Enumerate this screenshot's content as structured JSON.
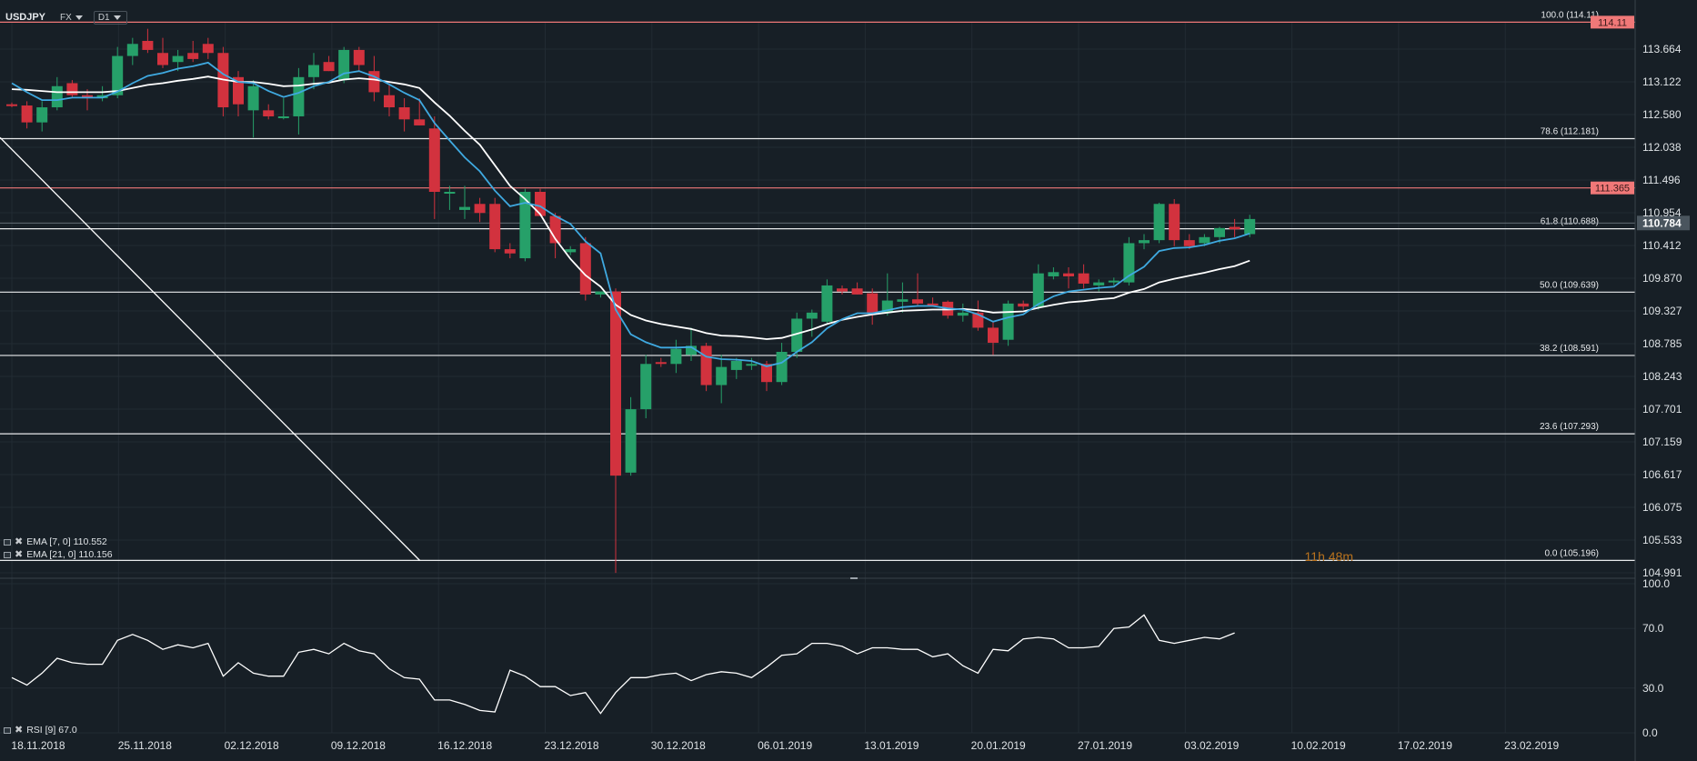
{
  "header": {
    "symbol": "USDJPY",
    "market": "FX",
    "timeframe": "D1"
  },
  "indicators": {
    "ema7": "EMA [7, 0] 110.552",
    "ema21": "EMA [21, 0] 110.156",
    "rsi": "RSI [9] 67.0"
  },
  "timer": "11h 48m",
  "colors": {
    "background": "#171f26",
    "bull": "#26a069",
    "bear": "#d2323e",
    "ema7": "#3fa9e0",
    "ema21": "#ffffff",
    "resistance": "#f07878",
    "grid": "#222b33"
  },
  "chart_data": [
    {
      "type": "candlestick",
      "title": "USDJPY",
      "y_ticks": [
        "113.664",
        "113.122",
        "112.580",
        "112.038",
        "111.496",
        "110.954",
        "110.412",
        "109.870",
        "109.327",
        "108.785",
        "108.243",
        "107.701",
        "107.159",
        "106.617",
        "106.075",
        "105.533",
        "104.991"
      ],
      "x_ticks": [
        "18.11.2018",
        "25.11.2018",
        "02.12.2018",
        "09.12.2018",
        "16.12.2018",
        "23.12.2018",
        "30.12.2018",
        "06.01.2019",
        "13.01.2019",
        "20.01.2019",
        "27.01.2019",
        "03.02.2019",
        "10.02.2019",
        "17.02.2019",
        "23.02.2019"
      ],
      "ylim": [
        104.8,
        114.3
      ],
      "price_labels": {
        "top": "114.11",
        "resistance": "111.365",
        "last": "110.784"
      },
      "horizontal_levels": [
        {
          "value": 114.11,
          "label": "100.0 (114.11)",
          "kind": "fib-resistance"
        },
        {
          "value": 112.181,
          "label": "78.6 (112.181)",
          "kind": "fib"
        },
        {
          "value": 111.365,
          "label": "",
          "kind": "resistance"
        },
        {
          "value": 110.688,
          "label": "61.8 (110.688)",
          "kind": "fib"
        },
        {
          "value": 109.639,
          "label": "50.0 (109.639)",
          "kind": "fib"
        },
        {
          "value": 108.591,
          "label": "38.2 (108.591)",
          "kind": "fib"
        },
        {
          "value": 107.293,
          "label": "23.6 (107.293)",
          "kind": "fib"
        },
        {
          "value": 105.196,
          "label": "0.0 (105.196)",
          "kind": "fib"
        }
      ],
      "trendline": {
        "from": {
          "bar": 0,
          "value": 112.2
        },
        "to": {
          "bar": 27.5,
          "value": 105.196
        }
      },
      "candles": [
        {
          "o": 112.75,
          "h": 112.78,
          "l": 112.7,
          "c": 112.73
        },
        {
          "o": 112.73,
          "h": 112.8,
          "l": 112.35,
          "c": 112.45
        },
        {
          "o": 112.45,
          "h": 112.8,
          "l": 112.3,
          "c": 112.7
        },
        {
          "o": 112.7,
          "h": 113.2,
          "l": 112.65,
          "c": 113.05
        },
        {
          "o": 113.1,
          "h": 113.15,
          "l": 112.85,
          "c": 112.9
        },
        {
          "o": 112.9,
          "h": 113.0,
          "l": 112.65,
          "c": 112.85
        },
        {
          "o": 112.85,
          "h": 113.05,
          "l": 112.8,
          "c": 112.9
        },
        {
          "o": 112.9,
          "h": 113.7,
          "l": 112.85,
          "c": 113.55
        },
        {
          "o": 113.55,
          "h": 113.85,
          "l": 113.4,
          "c": 113.75
        },
        {
          "o": 113.8,
          "h": 114.0,
          "l": 113.6,
          "c": 113.65
        },
        {
          "o": 113.6,
          "h": 113.85,
          "l": 113.35,
          "c": 113.4
        },
        {
          "o": 113.45,
          "h": 113.65,
          "l": 113.3,
          "c": 113.55
        },
        {
          "o": 113.6,
          "h": 113.8,
          "l": 113.45,
          "c": 113.5
        },
        {
          "o": 113.75,
          "h": 113.85,
          "l": 113.5,
          "c": 113.6
        },
        {
          "o": 113.6,
          "h": 113.7,
          "l": 112.55,
          "c": 112.7
        },
        {
          "o": 113.2,
          "h": 113.3,
          "l": 112.55,
          "c": 112.75
        },
        {
          "o": 112.65,
          "h": 113.15,
          "l": 112.2,
          "c": 113.05
        },
        {
          "o": 112.65,
          "h": 112.75,
          "l": 112.5,
          "c": 112.55
        },
        {
          "o": 112.55,
          "h": 112.85,
          "l": 112.5,
          "c": 112.55
        },
        {
          "o": 112.55,
          "h": 113.35,
          "l": 112.25,
          "c": 113.2
        },
        {
          "o": 113.2,
          "h": 113.6,
          "l": 113.0,
          "c": 113.4
        },
        {
          "o": 113.45,
          "h": 113.55,
          "l": 113.3,
          "c": 113.3
        },
        {
          "o": 113.15,
          "h": 113.7,
          "l": 113.1,
          "c": 113.65
        },
        {
          "o": 113.65,
          "h": 113.7,
          "l": 113.3,
          "c": 113.4
        },
        {
          "o": 113.3,
          "h": 113.55,
          "l": 112.8,
          "c": 112.95
        },
        {
          "o": 112.9,
          "h": 113.1,
          "l": 112.55,
          "c": 112.7
        },
        {
          "o": 112.7,
          "h": 112.85,
          "l": 112.3,
          "c": 112.5
        },
        {
          "o": 112.5,
          "h": 112.85,
          "l": 112.4,
          "c": 112.4
        },
        {
          "o": 112.35,
          "h": 112.55,
          "l": 110.85,
          "c": 111.3
        },
        {
          "o": 111.3,
          "h": 111.4,
          "l": 111.0,
          "c": 111.3
        },
        {
          "o": 111.0,
          "h": 111.4,
          "l": 110.85,
          "c": 111.05
        },
        {
          "o": 111.1,
          "h": 111.2,
          "l": 110.8,
          "c": 110.95
        },
        {
          "o": 111.1,
          "h": 111.2,
          "l": 110.3,
          "c": 110.35
        },
        {
          "o": 110.35,
          "h": 110.45,
          "l": 110.2,
          "c": 110.28
        },
        {
          "o": 110.2,
          "h": 111.35,
          "l": 110.15,
          "c": 111.3
        },
        {
          "o": 111.3,
          "h": 111.35,
          "l": 110.9,
          "c": 110.9
        },
        {
          "o": 110.9,
          "h": 110.95,
          "l": 110.2,
          "c": 110.45
        },
        {
          "o": 110.3,
          "h": 110.4,
          "l": 110.25,
          "c": 110.35
        },
        {
          "o": 110.45,
          "h": 110.55,
          "l": 109.5,
          "c": 109.6
        },
        {
          "o": 109.6,
          "h": 109.65,
          "l": 109.55,
          "c": 109.65
        },
        {
          "o": 109.65,
          "h": 109.7,
          "l": 104.99,
          "c": 106.6
        },
        {
          "o": 106.65,
          "h": 107.9,
          "l": 106.6,
          "c": 107.7
        },
        {
          "o": 107.7,
          "h": 108.6,
          "l": 107.55,
          "c": 108.45
        },
        {
          "o": 108.48,
          "h": 108.55,
          "l": 108.4,
          "c": 108.45
        },
        {
          "o": 108.45,
          "h": 108.85,
          "l": 108.3,
          "c": 108.7
        },
        {
          "o": 108.6,
          "h": 109.05,
          "l": 108.5,
          "c": 108.75
        },
        {
          "o": 108.75,
          "h": 108.8,
          "l": 108.0,
          "c": 108.1
        },
        {
          "o": 108.1,
          "h": 108.6,
          "l": 107.8,
          "c": 108.4
        },
        {
          "o": 108.35,
          "h": 108.55,
          "l": 108.2,
          "c": 108.5
        },
        {
          "o": 108.45,
          "h": 108.55,
          "l": 108.35,
          "c": 108.45
        },
        {
          "o": 108.45,
          "h": 108.5,
          "l": 108.0,
          "c": 108.15
        },
        {
          "o": 108.15,
          "h": 108.8,
          "l": 108.1,
          "c": 108.65
        },
        {
          "o": 108.65,
          "h": 109.3,
          "l": 108.55,
          "c": 109.2
        },
        {
          "o": 109.2,
          "h": 109.35,
          "l": 108.9,
          "c": 109.3
        },
        {
          "o": 109.15,
          "h": 109.85,
          "l": 109.1,
          "c": 109.75
        },
        {
          "o": 109.7,
          "h": 109.75,
          "l": 109.6,
          "c": 109.65
        },
        {
          "o": 109.7,
          "h": 109.8,
          "l": 109.6,
          "c": 109.6
        },
        {
          "o": 109.62,
          "h": 109.7,
          "l": 109.1,
          "c": 109.3
        },
        {
          "o": 109.3,
          "h": 109.95,
          "l": 109.25,
          "c": 109.5
        },
        {
          "o": 109.48,
          "h": 109.8,
          "l": 109.3,
          "c": 109.52
        },
        {
          "o": 109.52,
          "h": 109.95,
          "l": 109.4,
          "c": 109.45
        },
        {
          "o": 109.45,
          "h": 109.55,
          "l": 109.4,
          "c": 109.43
        },
        {
          "o": 109.48,
          "h": 109.5,
          "l": 109.2,
          "c": 109.25
        },
        {
          "o": 109.25,
          "h": 109.45,
          "l": 109.15,
          "c": 109.3
        },
        {
          "o": 109.3,
          "h": 109.5,
          "l": 109.0,
          "c": 109.05
        },
        {
          "o": 109.05,
          "h": 109.15,
          "l": 108.6,
          "c": 108.8
        },
        {
          "o": 108.85,
          "h": 109.5,
          "l": 108.75,
          "c": 109.45
        },
        {
          "o": 109.45,
          "h": 109.5,
          "l": 109.35,
          "c": 109.4
        },
        {
          "o": 109.4,
          "h": 110.1,
          "l": 109.35,
          "c": 109.95
        },
        {
          "o": 109.9,
          "h": 110.05,
          "l": 109.85,
          "c": 109.97
        },
        {
          "o": 109.95,
          "h": 110.05,
          "l": 109.7,
          "c": 109.9
        },
        {
          "o": 109.95,
          "h": 110.1,
          "l": 109.7,
          "c": 109.78
        },
        {
          "o": 109.75,
          "h": 109.85,
          "l": 109.65,
          "c": 109.8
        },
        {
          "o": 109.8,
          "h": 109.88,
          "l": 109.75,
          "c": 109.83
        },
        {
          "o": 109.8,
          "h": 110.55,
          "l": 109.75,
          "c": 110.45
        },
        {
          "o": 110.45,
          "h": 110.6,
          "l": 110.35,
          "c": 110.5
        },
        {
          "o": 110.5,
          "h": 111.12,
          "l": 110.45,
          "c": 111.1
        },
        {
          "o": 111.1,
          "h": 111.18,
          "l": 110.4,
          "c": 110.5
        },
        {
          "o": 110.5,
          "h": 110.6,
          "l": 110.35,
          "c": 110.4
        },
        {
          "o": 110.45,
          "h": 110.6,
          "l": 110.4,
          "c": 110.55
        },
        {
          "o": 110.55,
          "h": 110.72,
          "l": 110.45,
          "c": 110.7
        },
        {
          "o": 110.72,
          "h": 110.85,
          "l": 110.55,
          "c": 110.68
        },
        {
          "o": 110.6,
          "h": 110.92,
          "l": 110.55,
          "c": 110.85
        }
      ],
      "ema7": [
        113.1,
        112.95,
        112.82,
        112.82,
        112.86,
        112.86,
        112.86,
        112.96,
        113.1,
        113.22,
        113.27,
        113.34,
        113.38,
        113.44,
        113.25,
        113.12,
        113.1,
        112.97,
        112.87,
        112.94,
        113.05,
        113.12,
        113.26,
        113.3,
        113.21,
        113.08,
        112.94,
        112.82,
        112.44,
        112.15,
        111.87,
        111.64,
        111.32,
        111.06,
        111.12,
        111.06,
        110.9,
        110.77,
        110.48,
        110.28,
        109.35,
        108.94,
        108.81,
        108.72,
        108.72,
        108.73,
        108.57,
        108.53,
        108.52,
        108.5,
        108.41,
        108.47,
        108.65,
        108.81,
        109.04,
        109.19,
        109.29,
        109.29,
        109.34,
        109.39,
        109.41,
        109.41,
        109.37,
        109.35,
        109.27,
        109.15,
        109.22,
        109.27,
        109.44,
        109.57,
        109.65,
        109.68,
        109.71,
        109.73,
        109.91,
        110.06,
        110.32,
        110.37,
        110.38,
        110.42,
        110.49,
        110.53,
        110.61
      ],
      "ema21": [
        113.0,
        112.99,
        112.97,
        112.95,
        112.95,
        112.95,
        112.95,
        112.97,
        113.02,
        113.07,
        113.1,
        113.14,
        113.17,
        113.21,
        113.16,
        113.12,
        113.12,
        113.09,
        113.05,
        113.06,
        113.09,
        113.11,
        113.16,
        113.18,
        113.16,
        113.12,
        113.08,
        113.02,
        112.78,
        112.56,
        112.31,
        112.08,
        111.74,
        111.4,
        111.18,
        110.93,
        110.52,
        110.19,
        109.92,
        109.73,
        109.43,
        109.26,
        109.17,
        109.11,
        109.07,
        109.03,
        108.96,
        108.92,
        108.91,
        108.89,
        108.86,
        108.88,
        108.95,
        109.02,
        109.11,
        109.18,
        109.23,
        109.27,
        109.3,
        109.33,
        109.34,
        109.35,
        109.35,
        109.36,
        109.34,
        109.3,
        109.31,
        109.32,
        109.38,
        109.43,
        109.47,
        109.49,
        109.52,
        109.54,
        109.63,
        109.69,
        109.8,
        109.86,
        109.91,
        109.96,
        110.02,
        110.07,
        110.16
      ]
    },
    {
      "type": "line",
      "title": "RSI [9] 67.0",
      "y_ticks": [
        "100.0",
        "70.0",
        "30.0",
        "0.0"
      ],
      "ylim": [
        0,
        100
      ],
      "values": [
        37,
        32,
        40,
        50,
        47,
        46,
        46,
        62,
        66,
        62,
        56,
        59,
        57,
        60,
        38,
        47,
        40,
        38,
        38,
        54,
        56,
        53,
        60,
        55,
        53,
        43,
        37,
        36,
        22,
        22,
        19,
        15,
        14,
        42,
        38,
        31,
        31,
        25,
        27,
        13,
        27,
        37,
        37,
        39,
        40,
        35,
        39,
        41,
        40,
        37,
        44,
        52,
        53,
        60,
        60,
        58,
        53,
        57,
        57,
        56,
        56,
        51,
        53,
        45,
        40,
        56,
        55,
        63,
        64,
        63,
        57,
        57,
        58,
        70,
        71,
        79,
        62,
        60,
        62,
        64,
        63,
        67
      ]
    }
  ]
}
